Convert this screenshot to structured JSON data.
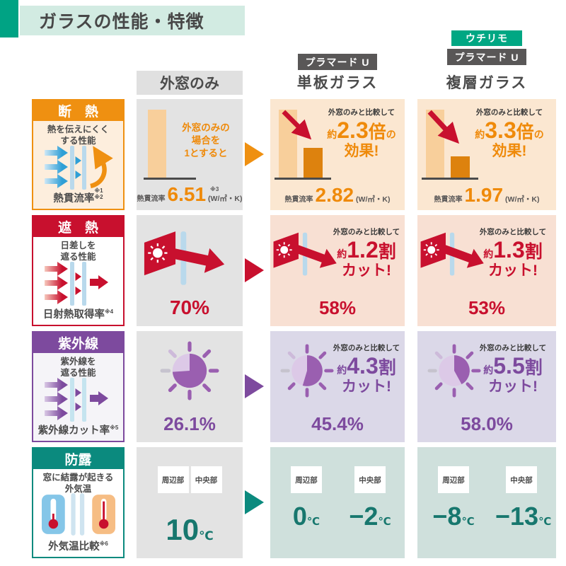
{
  "title": "ガラスの性能・特徴",
  "header": {
    "baseline_label": "外窓のみ",
    "single": {
      "badge": "プラマード U",
      "name": "単板ガラス"
    },
    "double": {
      "badge_top": "ウチリモ",
      "badge": "プラマード U",
      "name": "複層ガラス"
    }
  },
  "shared": {
    "compare_note": "外窓のみと比較して",
    "approx": "約",
    "particle": "の",
    "effect_word": "効果!",
    "cut_word": "カット!",
    "zone_left": "周辺部",
    "zone_right": "中央部",
    "deg_unit": "℃"
  },
  "rows": {
    "insulation": {
      "title": "断　熱",
      "desc": "熱を伝えにくく\nする性能",
      "metric": "熱貫流率",
      "note1": "※1",
      "note2": "※2",
      "unit": "(W/㎡・K)",
      "baseline": {
        "caption": "外窓のみの\n場合を\n1とすると",
        "value": "6.51",
        "value_note": "※3"
      },
      "single": {
        "factor": "2.3",
        "factor_unit": "倍",
        "value": "2.82"
      },
      "double": {
        "factor": "3.3",
        "factor_unit": "倍",
        "value": "1.97"
      }
    },
    "shading": {
      "title": "遮　熱",
      "desc": "日差しを\n遮る性能",
      "metric": "日射熱取得率",
      "note": "※4",
      "baseline": {
        "value": "70%"
      },
      "single": {
        "factor": "1.2",
        "factor_unit": "割",
        "value": "58%"
      },
      "double": {
        "factor": "1.3",
        "factor_unit": "割",
        "value": "53%"
      }
    },
    "uv": {
      "title": "紫外線",
      "desc": "紫外線を\n遮る性能",
      "metric": "紫外線カット率",
      "note": "※5",
      "baseline": {
        "value": "26.1%",
        "pie_percent": 26.1
      },
      "single": {
        "factor": "4.3",
        "factor_unit": "割",
        "value": "45.4%",
        "pie_percent": 45.4
      },
      "double": {
        "factor": "5.5",
        "factor_unit": "割",
        "value": "58.0%",
        "pie_percent": 58.0
      }
    },
    "condensation": {
      "title": "防露",
      "desc": "窓に結露が起きる\n外気温",
      "metric": "外気温比較",
      "note": "※6",
      "baseline": {
        "value": "10"
      },
      "single": {
        "left": "0",
        "right": "−2"
      },
      "double": {
        "left": "−8",
        "right": "−13"
      }
    }
  },
  "colors": {
    "accent_teal": "#00a783",
    "badge_gray": "#595757",
    "insulation_orange": "#ef9011",
    "shading_red": "#c8102e",
    "uv_purple": "#7d4a9e",
    "condensation_teal": "#0b8a7e"
  }
}
